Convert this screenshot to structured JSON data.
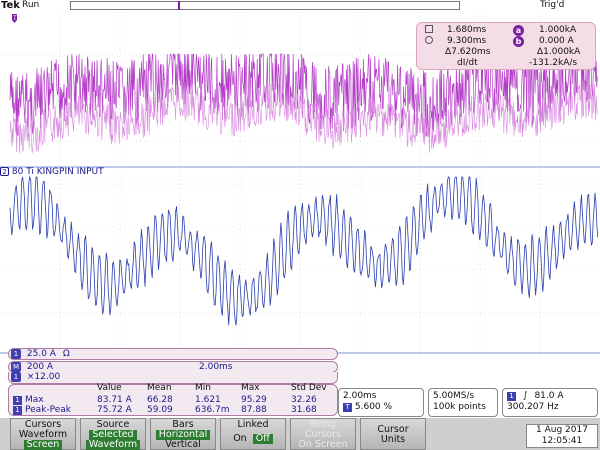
{
  "topbar": {
    "brand": "Tek",
    "run_state": "Run",
    "trigger_state": "Trig'd"
  },
  "cursor_readout": {
    "a_time": "1.680ms",
    "a_value": "1.000kA",
    "b_time": "9.300ms",
    "b_value": "0.000 A",
    "delta_time": "Δ7.620ms",
    "delta_value": "Δ1.000kA",
    "dv_label": "dI/dt",
    "dv_value": "-131.2kA/s",
    "a_chip": "a",
    "b_chip": "b"
  },
  "channel2": {
    "number": "2",
    "label": "80 Ti KINGPIN INPUT"
  },
  "info": {
    "ch1_scale": "25.0 A",
    "ch1_coupling": "Ω␈",
    "math_scale": "200 A",
    "math_time": "2.00ms",
    "zoom": "×12.00",
    "ch1_marker": "1",
    "math_marker": "M"
  },
  "measurements": {
    "headers": [
      "Value",
      "Mean",
      "Min",
      "Max",
      "Std Dev"
    ],
    "rows": [
      {
        "name": "Max",
        "values": [
          "83.71 A",
          "66.28",
          "1.621",
          "95.29",
          "32.26"
        ]
      },
      {
        "name": "Peak-Peak",
        "values": [
          "75.72 A",
          "59.09",
          "636.7m",
          "87.88",
          "31.68"
        ]
      }
    ]
  },
  "timebase": {
    "scale": "2.00ms",
    "position": "5.600 %"
  },
  "acquisition": {
    "rate": "5.00MS/s",
    "record": "100k points"
  },
  "trigger": {
    "source": "1",
    "level": "81.0 A",
    "freq": "300.207 Hz"
  },
  "menu": {
    "cursors": {
      "title": "Cursors",
      "line2": "Waveform",
      "selected": "Screen"
    },
    "source": {
      "title": "Source",
      "line2": "Selected",
      "selected": "Waveform"
    },
    "bars": {
      "title": "Bars",
      "selected": "Horizontal",
      "line3": "Vertical"
    },
    "linked": {
      "title": "Linked",
      "on": "On",
      "off": "Off"
    },
    "bring": {
      "line1": "Bring",
      "line2": "Cursors",
      "line3": "On Screen"
    },
    "units": {
      "line1": "Cursor",
      "line2": "Units"
    }
  },
  "date": {
    "day": "1 Aug 2017",
    "time": "12:05:41"
  },
  "colors": {
    "ch1": "#b43cc8",
    "ch2": "#2a3fb0",
    "accent": "#2e7d32",
    "panel": "#f3e9f0"
  }
}
